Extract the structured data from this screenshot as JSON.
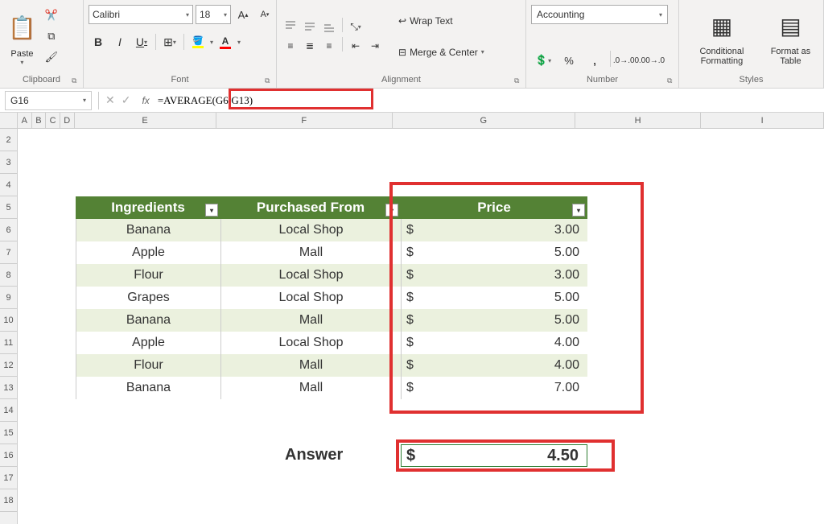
{
  "ribbon": {
    "clipboard": {
      "label": "Clipboard",
      "paste": "Paste"
    },
    "font": {
      "label": "Font",
      "name": "Calibri",
      "size": "18",
      "bold": "B",
      "italic": "I",
      "underline": "U"
    },
    "alignment": {
      "label": "Alignment",
      "wrap": "Wrap Text",
      "merge": "Merge & Center"
    },
    "number": {
      "label": "Number",
      "format": "Accounting"
    },
    "styles": {
      "label": "Styles",
      "conditional": "Conditional Formatting",
      "conditional_sub": "⌄",
      "format_table": "Format as Table",
      "format_table_sub": "⌄"
    }
  },
  "formula_bar": {
    "name_box": "G16",
    "formula": "=AVERAGE(G6:G13)"
  },
  "columns": {
    "visible": [
      "A",
      "B",
      "C",
      "D",
      "E",
      "F",
      "G",
      "H",
      "I"
    ],
    "widthsPx": {
      "A": 18,
      "B": 18,
      "C": 18,
      "D": 18,
      "E": 180,
      "F": 224,
      "G": 232,
      "H": 160,
      "I": 156
    }
  },
  "rows": {
    "first": 2,
    "last": 18,
    "heightPx": 28
  },
  "table": {
    "topRow": 5,
    "leftCol": "E",
    "colWidths": {
      "E": 180,
      "F": 224,
      "G": 232
    },
    "headers": {
      "E": "Ingredients",
      "F": "Purchased From",
      "G": "Price"
    },
    "bandColorEven": "#ebf1de",
    "bandColorOdd": "#ffffff",
    "headerBg": "#548235",
    "headerFg": "#ffffff",
    "rows": [
      {
        "E": "Banana",
        "F": "Local Shop",
        "G": "3.00"
      },
      {
        "E": "Apple",
        "F": "Mall",
        "G": "5.00"
      },
      {
        "E": "Flour",
        "F": "Local Shop",
        "G": "3.00"
      },
      {
        "E": "Grapes",
        "F": "Local Shop",
        "G": "5.00"
      },
      {
        "E": "Banana",
        "F": "Mall",
        "G": "5.00"
      },
      {
        "E": "Apple",
        "F": "Local Shop",
        "G": "4.00"
      },
      {
        "E": "Flour",
        "F": "Mall",
        "G": "4.00"
      },
      {
        "E": "Banana",
        "F": "Mall",
        "G": "7.00"
      }
    ],
    "currencySymbol": "$"
  },
  "answer": {
    "labelCell": "F16",
    "label": "Answer",
    "valueCell": "G16",
    "value": "4.50",
    "currencySymbol": "$"
  },
  "highlights": {
    "formulaBox": true,
    "priceColumn": true,
    "answerCell": true,
    "color": "#e03030"
  }
}
